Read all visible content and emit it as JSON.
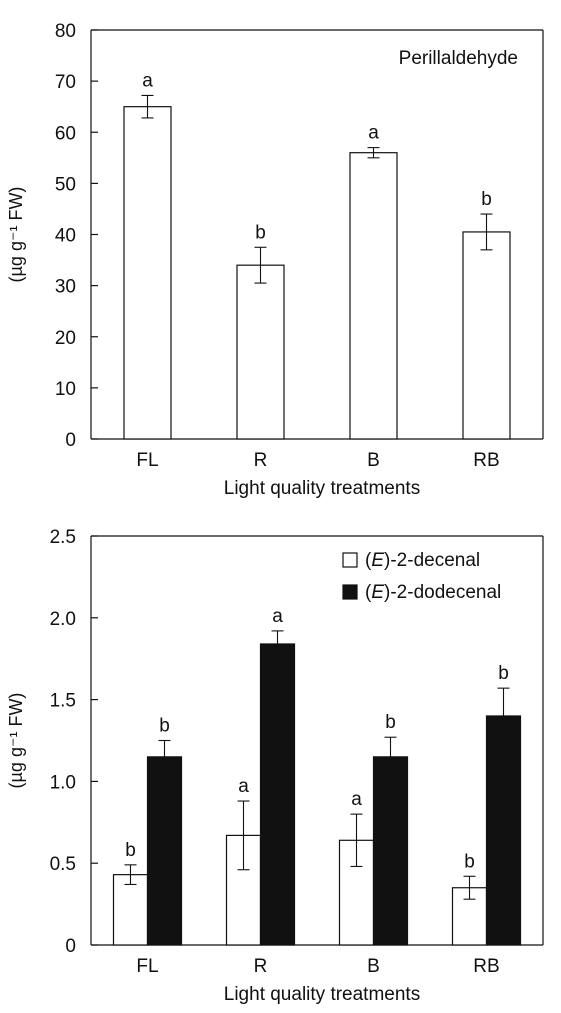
{
  "chart_data": [
    {
      "type": "bar",
      "title": "Perillaldehyde",
      "categories": [
        "FL",
        "R",
        "B",
        "RB"
      ],
      "series": [
        {
          "values": [
            65,
            34,
            56,
            40.5
          ],
          "errors": [
            2.2,
            3.5,
            1,
            3.5
          ],
          "letters": [
            "a",
            "b",
            "a",
            "b"
          ],
          "color": "#ffffff"
        }
      ],
      "xlabel": "Light quality treatments",
      "ylabel": "(µg g⁻¹ FW)",
      "ylim": [
        0,
        80
      ],
      "yticks": [
        "0",
        "10",
        "20",
        "30",
        "40",
        "50",
        "60",
        "70",
        "80"
      ],
      "legend": "none",
      "grid": false
    },
    {
      "type": "bar",
      "categories": [
        "FL",
        "R",
        "B",
        "RB"
      ],
      "series": [
        {
          "name": "(E)-2-decenal",
          "values": [
            0.43,
            0.67,
            0.64,
            0.35
          ],
          "errors": [
            0.06,
            0.21,
            0.16,
            0.07
          ],
          "letters": [
            "b",
            "a",
            "a",
            "b"
          ],
          "color": "#ffffff"
        },
        {
          "name": "(E)-2-dodecenal",
          "values": [
            1.15,
            1.84,
            1.15,
            1.4
          ],
          "errors": [
            0.1,
            0.08,
            0.12,
            0.17
          ],
          "letters": [
            "b",
            "a",
            "b",
            "b"
          ],
          "color": "#111111"
        }
      ],
      "xlabel": "Light quality treatments",
      "ylabel": "(µg g⁻¹ FW)",
      "ylim": [
        0,
        2.5
      ],
      "yticks": [
        "0",
        "0.5",
        "1.0",
        "1.5",
        "2.0",
        "2.5"
      ],
      "legend": "top-right",
      "grid": false
    }
  ]
}
